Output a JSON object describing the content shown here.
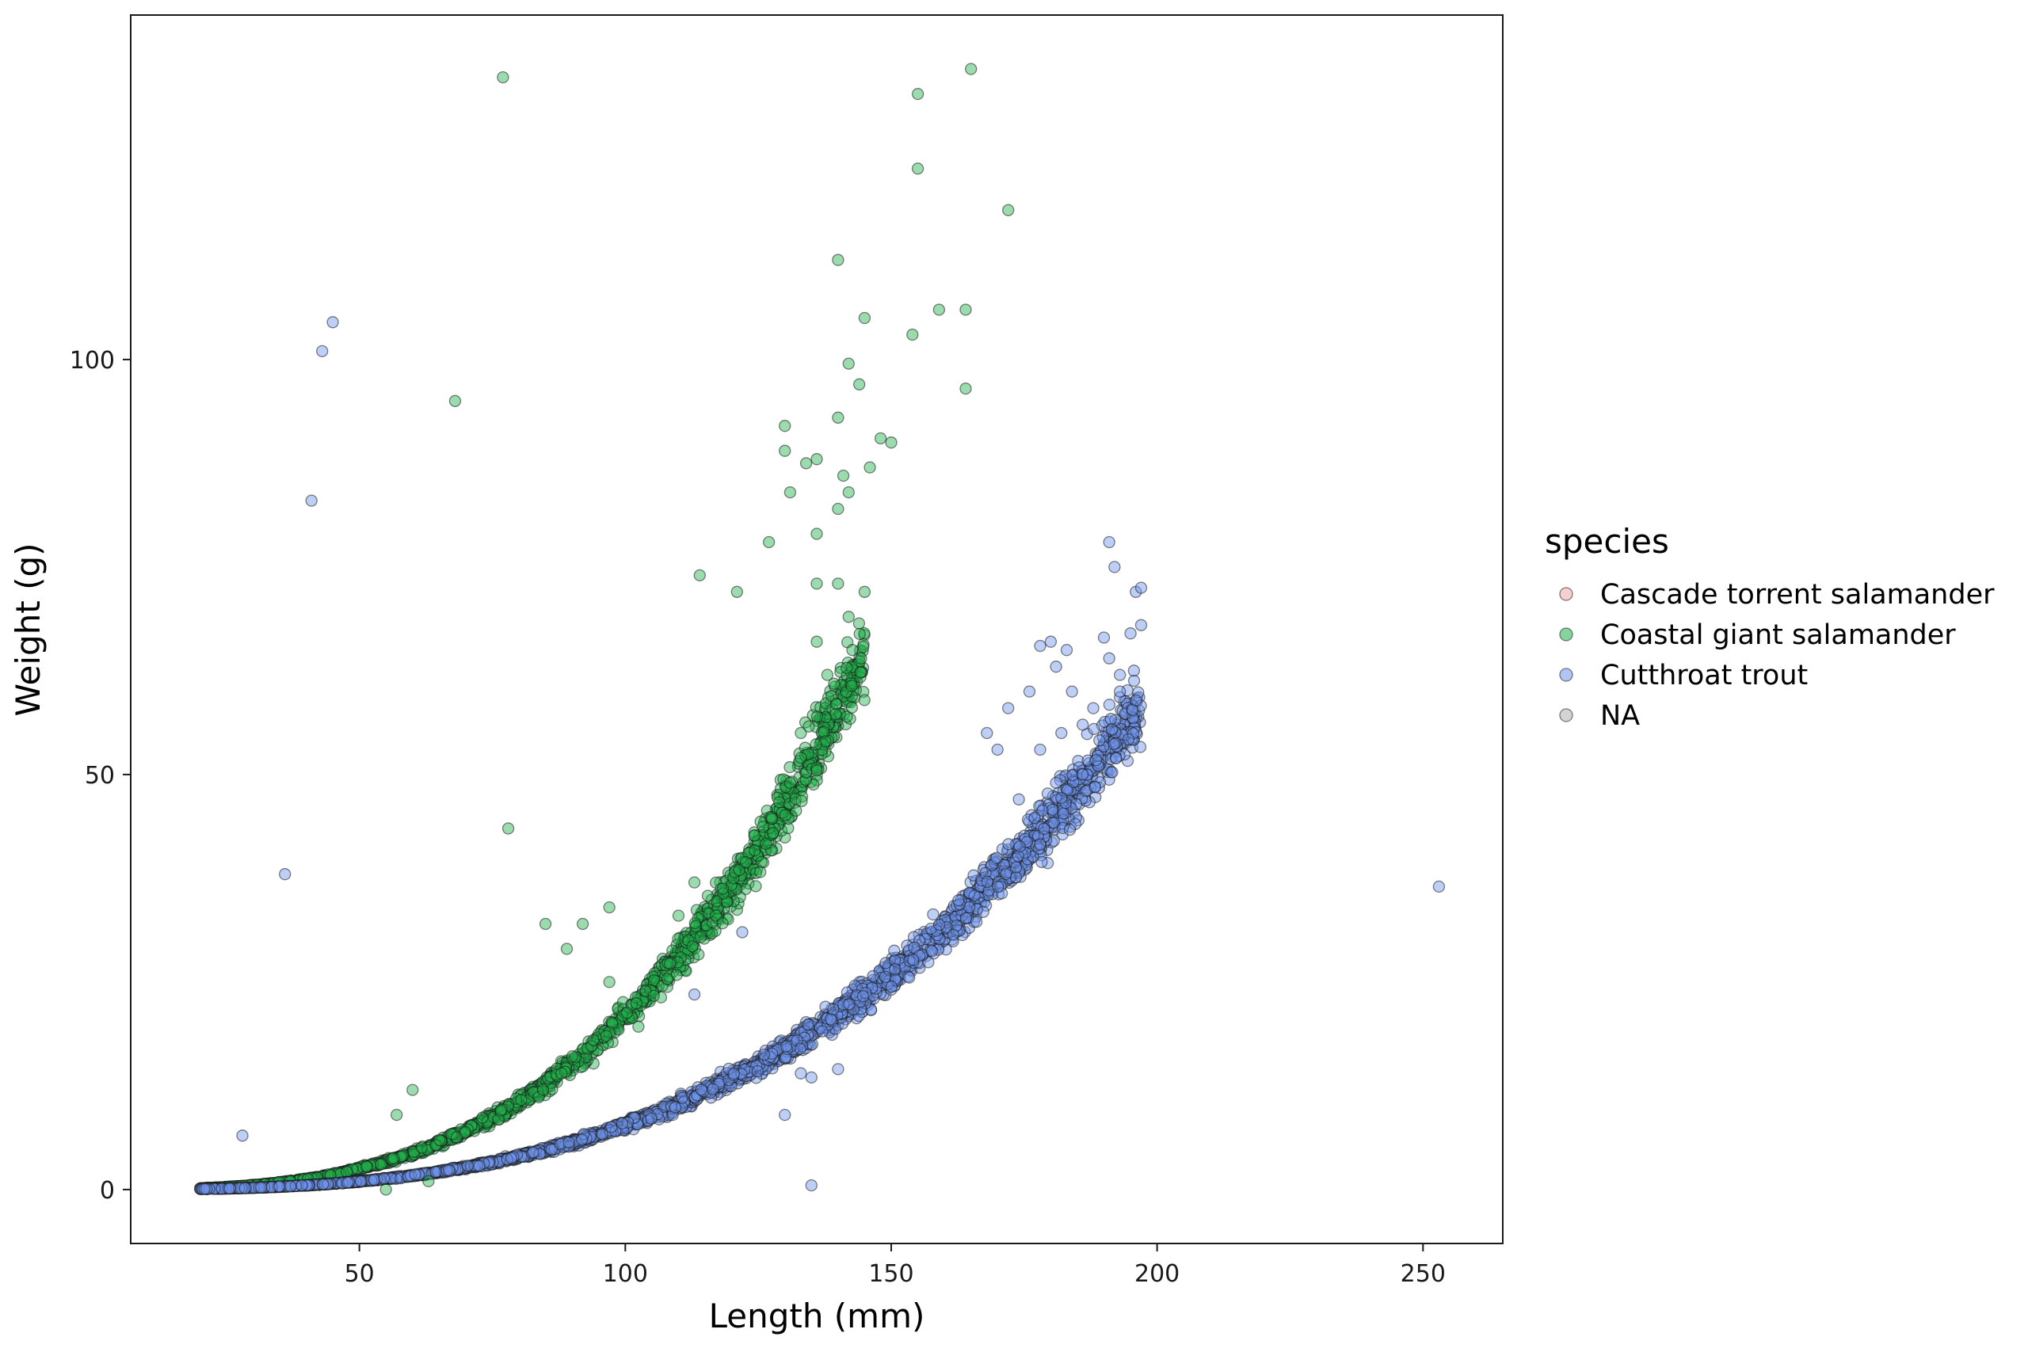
{
  "chart_data": {
    "type": "scatter",
    "title": "",
    "xlabel": "Length (mm)",
    "ylabel": "Weight (g)",
    "xlim": [
      7,
      265
    ],
    "ylim": [
      -6.5,
      141.5
    ],
    "x_ticks": [
      50,
      100,
      150,
      200,
      250
    ],
    "y_ticks": [
      0,
      50,
      100
    ],
    "grid": false,
    "legend": {
      "title": "species",
      "placement": "right",
      "entries": [
        "Cascade torrent salamander",
        "Coastal giant salamander",
        "Cutthroat trout",
        "NA"
      ]
    },
    "series": [
      {
        "name": "Cascade torrent salamander",
        "color": "#f4a6a6",
        "points": []
      },
      {
        "name": "Coastal giant salamander",
        "color": "#22b14c",
        "curve": {
          "x_min": 20,
          "x_max": 145,
          "formula": "w = 0.0000166 * x^3.05",
          "note": "dense band of points following this trend"
        },
        "points": [
          [
            77,
            134
          ],
          [
            165,
            135
          ],
          [
            155,
            132
          ],
          [
            155,
            123
          ],
          [
            172,
            118
          ],
          [
            140,
            112
          ],
          [
            145,
            105
          ],
          [
            159,
            106
          ],
          [
            164,
            106
          ],
          [
            154,
            103
          ],
          [
            68,
            95
          ],
          [
            164,
            96.5
          ],
          [
            142,
            99.5
          ],
          [
            144,
            97
          ],
          [
            130,
            92
          ],
          [
            140,
            93
          ],
          [
            148,
            90.5
          ],
          [
            150,
            90
          ],
          [
            130,
            89
          ],
          [
            134,
            87.5
          ],
          [
            136,
            88
          ],
          [
            141,
            86
          ],
          [
            146,
            87
          ],
          [
            131,
            84
          ],
          [
            140,
            82
          ],
          [
            142,
            84
          ],
          [
            127,
            78
          ],
          [
            136,
            79
          ],
          [
            136,
            73
          ],
          [
            140,
            73
          ],
          [
            145,
            72
          ],
          [
            114,
            74
          ],
          [
            142,
            69
          ],
          [
            121,
            72
          ],
          [
            136,
            66
          ],
          [
            138,
            62
          ],
          [
            133,
            55
          ],
          [
            131,
            49
          ],
          [
            133,
            52
          ],
          [
            136,
            50.5
          ],
          [
            78,
            43.5
          ],
          [
            113,
            37
          ],
          [
            110,
            33
          ],
          [
            97,
            34
          ],
          [
            92,
            32
          ],
          [
            85,
            32
          ],
          [
            89,
            29
          ],
          [
            97,
            25
          ],
          [
            94,
            18
          ],
          [
            88,
            14
          ],
          [
            60,
            12
          ],
          [
            57,
            9
          ],
          [
            63,
            1
          ],
          [
            55,
            0
          ]
        ]
      },
      {
        "name": "Cutthroat trout",
        "color": "#6f95ee",
        "curve": {
          "x_min": 20,
          "x_max": 197,
          "formula": "w = 0.0000085 * x^2.98",
          "note": "dense band of points following this trend"
        },
        "points": [
          [
            45,
            104.5
          ],
          [
            43,
            101
          ],
          [
            41,
            83
          ],
          [
            36,
            38
          ],
          [
            253,
            36.5
          ],
          [
            28,
            6.5
          ],
          [
            135,
            0.5
          ],
          [
            130,
            9
          ],
          [
            133,
            14
          ],
          [
            135,
            13.5
          ],
          [
            140,
            14.5
          ],
          [
            122,
            31
          ],
          [
            113,
            23.5
          ],
          [
            191,
            78
          ],
          [
            192,
            75
          ],
          [
            196,
            72
          ],
          [
            197,
            72.5
          ],
          [
            195,
            67
          ],
          [
            197,
            68
          ],
          [
            190,
            66.5
          ],
          [
            186,
            56
          ],
          [
            188,
            58
          ],
          [
            186,
            50
          ],
          [
            191,
            64
          ],
          [
            193,
            60
          ],
          [
            193,
            62
          ],
          [
            180,
            66
          ],
          [
            178,
            65.5
          ],
          [
            183,
            65
          ],
          [
            184,
            60
          ],
          [
            181,
            63
          ],
          [
            182,
            55
          ],
          [
            181,
            49
          ],
          [
            176,
            60
          ],
          [
            172,
            58
          ],
          [
            170,
            53
          ],
          [
            168,
            55
          ],
          [
            178,
            53
          ],
          [
            174,
            47
          ]
        ]
      },
      {
        "name": "NA",
        "color": "#b0b0b0",
        "points": []
      }
    ]
  }
}
